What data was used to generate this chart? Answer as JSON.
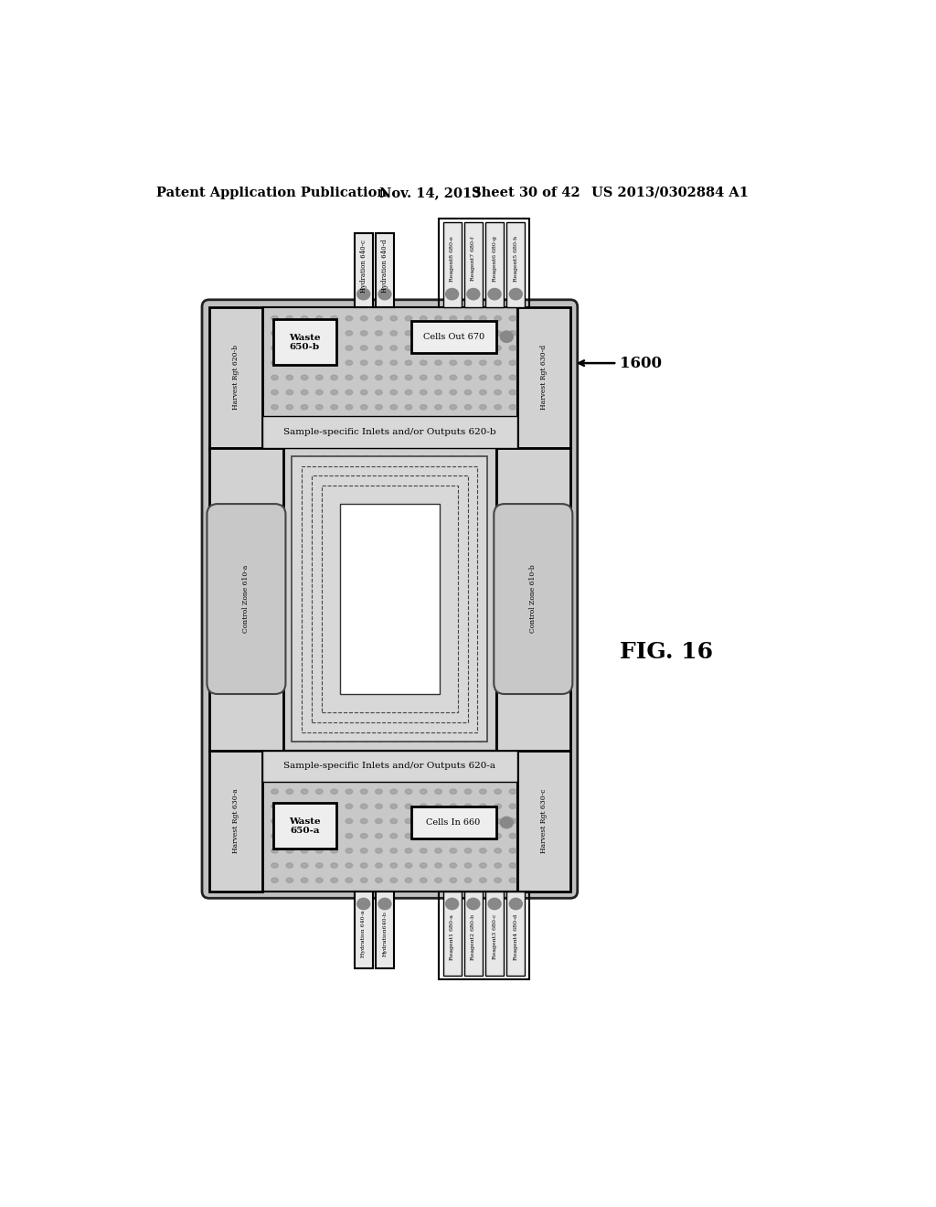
{
  "bg_color": "#ffffff",
  "header_text": "Patent Application Publication",
  "header_date": "Nov. 14, 2013",
  "header_sheet": "Sheet 30 of 42",
  "header_patent": "US 2013/0302884 A1",
  "fig_label": "FIG. 16",
  "ref_num": "1600",
  "chip_fill": "#c0c0c0",
  "chip_border": "#222222",
  "strip_fill": "#c8c8c8",
  "panel_fill": "#d2d2d2",
  "box_fill": "#eeeeee",
  "dot_color": "#909090",
  "tube_fill": "#e8e8e8",
  "center_fill": "#d0d0d0",
  "white_fill": "#ffffff",
  "ctrl_oval_fill": "#c8c8c8"
}
